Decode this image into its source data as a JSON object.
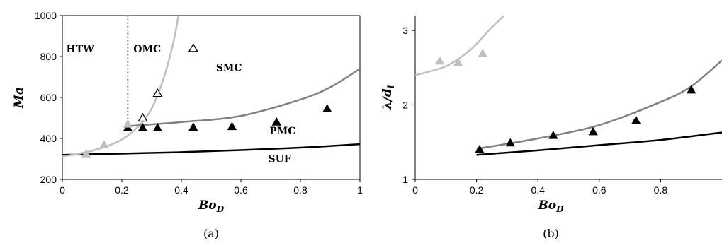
{
  "chart_data": [
    {
      "type": "scatter",
      "panel_label": "(a)",
      "xlabel": "Bo_D",
      "ylabel": "Ma",
      "xlim": [
        0,
        1
      ],
      "ylim": [
        200,
        1000
      ],
      "xticks": [
        0,
        0.2,
        0.4,
        0.6,
        0.8,
        1
      ],
      "xtick_labels": [
        "0",
        "0.2",
        "0.4",
        "0.6",
        "0.8",
        "1"
      ],
      "yticks": [
        200,
        400,
        600,
        800,
        1000
      ],
      "ytick_labels": [
        "200",
        "400",
        "600",
        "800",
        "1000"
      ],
      "regions": [
        {
          "label": "HTW",
          "at": [
            0.06,
            820
          ]
        },
        {
          "label": "OMC",
          "at": [
            0.285,
            820
          ]
        },
        {
          "label": "SMC",
          "at": [
            0.56,
            730
          ]
        },
        {
          "label": "PMC",
          "at": [
            0.74,
            420
          ]
        },
        {
          "label": "SUF",
          "at": [
            0.73,
            285
          ]
        }
      ],
      "vertical_dotted_line": {
        "x": 0.22,
        "y_range": [
          460,
          1000
        ]
      },
      "curves": [
        {
          "color": "#000000",
          "points": [
            [
              0,
              320
            ],
            [
              0.2,
              326
            ],
            [
              0.4,
              333
            ],
            [
              0.6,
              343
            ],
            [
              0.8,
              355
            ],
            [
              1,
              372
            ]
          ]
        },
        {
          "color": "#bfbfbf",
          "points": [
            [
              0,
              312
            ],
            [
              0.1,
              340
            ],
            [
              0.2,
              395
            ],
            [
              0.28,
              500
            ],
            [
              0.33,
              650
            ],
            [
              0.37,
              850
            ],
            [
              0.39,
              1000
            ]
          ]
        },
        {
          "color": "#808080",
          "points": [
            [
              0.22,
              460
            ],
            [
              0.4,
              480
            ],
            [
              0.6,
              510
            ],
            [
              0.8,
              590
            ],
            [
              0.9,
              650
            ],
            [
              1,
              740
            ]
          ]
        }
      ],
      "series": [
        {
          "marker": "filled-triangle",
          "color": "#000000",
          "points": [
            [
              0.22,
              452
            ],
            [
              0.27,
              452
            ],
            [
              0.32,
              452
            ],
            [
              0.44,
              455
            ],
            [
              0.57,
              458
            ],
            [
              0.72,
              480
            ],
            [
              0.89,
              545
            ]
          ]
        },
        {
          "marker": "open-triangle",
          "color": "#000000",
          "points": [
            [
              0.27,
              500
            ],
            [
              0.32,
              620
            ],
            [
              0.44,
              840
            ]
          ]
        },
        {
          "marker": "filled-triangle",
          "color": "#bfbfbf",
          "points": [
            [
              0.08,
              325
            ],
            [
              0.14,
              368
            ],
            [
              0.22,
              470
            ]
          ]
        }
      ]
    },
    {
      "type": "scatter",
      "panel_label": "(b)",
      "xlabel": "Bo_D",
      "ylabel": "λ/d_l",
      "xlim": [
        0,
        1
      ],
      "ylim": [
        1,
        3.2
      ],
      "xticks": [
        0,
        0.2,
        0.4,
        0.6,
        0.8
      ],
      "xtick_labels": [
        "0",
        "0.2",
        "0.4",
        "0.6",
        "0.8"
      ],
      "yticks": [
        1,
        2,
        3
      ],
      "ytick_labels": [
        "1",
        "2",
        "3"
      ],
      "curves": [
        {
          "color": "#000000",
          "points": [
            [
              0.2,
              1.33
            ],
            [
              0.4,
              1.39
            ],
            [
              0.6,
              1.46
            ],
            [
              0.8,
              1.53
            ],
            [
              1,
              1.63
            ]
          ]
        },
        {
          "color": "#808080",
          "points": [
            [
              0.2,
              1.41
            ],
            [
              0.4,
              1.55
            ],
            [
              0.6,
              1.73
            ],
            [
              0.8,
              2.04
            ],
            [
              0.9,
              2.25
            ],
            [
              1,
              2.6
            ]
          ]
        },
        {
          "color": "#bfbfbf",
          "points": [
            [
              0,
              2.4
            ],
            [
              0.1,
              2.52
            ],
            [
              0.18,
              2.74
            ],
            [
              0.24,
              3.0
            ],
            [
              0.29,
              3.2
            ]
          ]
        }
      ],
      "series": [
        {
          "marker": "filled-triangle",
          "color": "#000000",
          "points": [
            [
              0.21,
              1.4
            ],
            [
              0.31,
              1.49
            ],
            [
              0.45,
              1.59
            ],
            [
              0.58,
              1.64
            ],
            [
              0.72,
              1.79
            ],
            [
              0.9,
              2.2
            ]
          ]
        },
        {
          "marker": "filled-triangle",
          "color": "#bfbfbf",
          "points": [
            [
              0.08,
              2.59
            ],
            [
              0.14,
              2.57
            ],
            [
              0.22,
              2.69
            ]
          ]
        }
      ]
    }
  ]
}
